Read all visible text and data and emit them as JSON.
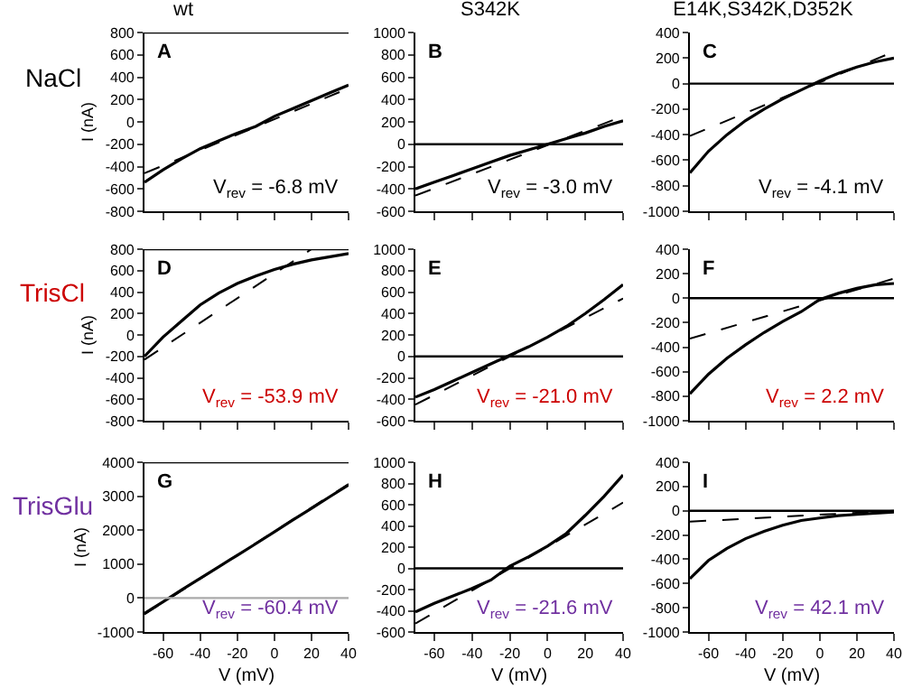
{
  "chart_data": [
    {
      "type": "line",
      "title": "wt",
      "ylabel": "I (nA)",
      "annotations": [
        "A",
        "V$_{rev}$ = -6.8 mV",
        "NaCl"
      ],
      "xlim": [
        -70,
        40
      ],
      "xticks": [
        -60,
        -40,
        -20,
        0,
        20,
        40
      ],
      "ylim": [
        -800,
        800
      ],
      "yticks": [
        -800,
        -600,
        -400,
        -200,
        0,
        200,
        400,
        600,
        800
      ],
      "tick_labels": "y",
      "ref_lines": [
        {
          "axis": "y",
          "value": 800
        }
      ],
      "series": [
        {
          "x": [
            -70,
            -60,
            -50,
            -40,
            -30,
            -20,
            -10,
            0,
            10,
            20,
            30,
            40
          ],
          "values": [
            -540,
            -430,
            -330,
            -240,
            -170,
            -100,
            -40,
            50,
            120,
            190,
            260,
            330
          ],
          "color": "#000000",
          "line_style": "solid"
        },
        {
          "x": [
            -70,
            40
          ],
          "values": [
            -460,
            300
          ],
          "color": "#000000",
          "line_style": "dashed"
        }
      ]
    },
    {
      "type": "line",
      "title": "S342K",
      "annotations": [
        "B",
        "V$_{rev}$ = -3.0 mV"
      ],
      "xlim": [
        -70,
        40
      ],
      "xticks": [
        -60,
        -40,
        -20,
        0,
        20,
        40
      ],
      "ylim": [
        -600,
        1000
      ],
      "yticks": [
        -600,
        -400,
        -200,
        0,
        200,
        400,
        600,
        800,
        1000
      ],
      "tick_labels": "y",
      "ref_lines": [
        {
          "axis": "y",
          "value": 0
        }
      ],
      "series": [
        {
          "x": [
            -70,
            -60,
            -50,
            -40,
            -30,
            -20,
            -10,
            0,
            10,
            20,
            30,
            40
          ],
          "values": [
            -400,
            -340,
            -280,
            -220,
            -160,
            -100,
            -50,
            0,
            50,
            100,
            160,
            210
          ],
          "color": "#000000",
          "line_style": "solid"
        },
        {
          "x": [
            -70,
            40
          ],
          "values": [
            -460,
            250
          ],
          "color": "#000000",
          "line_style": "dashed"
        }
      ]
    },
    {
      "type": "line",
      "title": "E14K,S342K,D352K",
      "annotations": [
        "C",
        "V$_{rev}$ = -4.1 mV"
      ],
      "xlim": [
        -70,
        40
      ],
      "xticks": [
        -60,
        -40,
        -20,
        0,
        20,
        40
      ],
      "ylim": [
        -1000,
        400
      ],
      "yticks": [
        -1000,
        -800,
        -600,
        -400,
        -200,
        0,
        200,
        400
      ],
      "tick_labels": "y",
      "ref_lines": [
        {
          "axis": "y",
          "value": 0
        }
      ],
      "series": [
        {
          "x": [
            -70,
            -60,
            -50,
            -40,
            -30,
            -20,
            -10,
            0,
            10,
            20,
            30,
            40
          ],
          "values": [
            -700,
            -530,
            -400,
            -290,
            -200,
            -120,
            -50,
            20,
            80,
            130,
            170,
            200
          ],
          "color": "#000000",
          "line_style": "solid"
        },
        {
          "x": [
            -70,
            40
          ],
          "values": [
            -410,
            250
          ],
          "color": "#000000",
          "line_style": "dashed"
        }
      ]
    },
    {
      "type": "line",
      "ylabel": "I (nA)",
      "annotations": [
        "D",
        "V$_{rev}$ = -53.9 mV",
        "TrisCl"
      ],
      "xlim": [
        -70,
        40
      ],
      "xticks": [
        -60,
        -40,
        -20,
        0,
        20,
        40
      ],
      "ylim": [
        -800,
        800
      ],
      "yticks": [
        -800,
        -600,
        -400,
        -200,
        0,
        200,
        400,
        600,
        800
      ],
      "tick_labels": "y",
      "ref_lines": [
        {
          "axis": "y",
          "value": 800
        }
      ],
      "series": [
        {
          "x": [
            -70,
            -60,
            -50,
            -40,
            -30,
            -20,
            -10,
            0,
            10,
            20,
            30,
            40
          ],
          "values": [
            -200,
            -20,
            130,
            280,
            390,
            480,
            550,
            610,
            660,
            700,
            730,
            760
          ],
          "color": "#000000",
          "line_style": "solid"
        },
        {
          "x": [
            -70,
            20
          ],
          "values": [
            -230,
            800
          ],
          "color": "#000000",
          "line_style": "dashed"
        }
      ]
    },
    {
      "type": "line",
      "annotations": [
        "E",
        "V$_{rev}$ = -21.0 mV"
      ],
      "xlim": [
        -70,
        40
      ],
      "xticks": [
        -60,
        -40,
        -20,
        0,
        20,
        40
      ],
      "ylim": [
        -600,
        1000
      ],
      "yticks": [
        -600,
        -400,
        -200,
        0,
        200,
        400,
        600,
        800,
        1000
      ],
      "tick_labels": "y",
      "ref_lines": [
        {
          "axis": "y",
          "value": 0
        }
      ],
      "series": [
        {
          "x": [
            -70,
            -60,
            -50,
            -40,
            -30,
            -20,
            -10,
            0,
            10,
            20,
            30,
            40
          ],
          "values": [
            -380,
            -310,
            -230,
            -150,
            -70,
            10,
            90,
            180,
            280,
            400,
            530,
            670
          ],
          "color": "#000000",
          "line_style": "solid"
        },
        {
          "x": [
            -70,
            40
          ],
          "values": [
            -450,
            540
          ],
          "color": "#000000",
          "line_style": "dashed"
        }
      ]
    },
    {
      "type": "line",
      "annotations": [
        "F",
        "V$_{rev}$ = 2.2 mV"
      ],
      "xlim": [
        -70,
        40
      ],
      "xticks": [
        -60,
        -40,
        -20,
        0,
        20,
        40
      ],
      "ylim": [
        -1000,
        400
      ],
      "yticks": [
        -1000,
        -800,
        -600,
        -400,
        -200,
        0,
        200,
        400
      ],
      "tick_labels": "y",
      "ref_lines": [
        {
          "axis": "y",
          "value": 0
        }
      ],
      "series": [
        {
          "x": [
            -70,
            -60,
            -50,
            -40,
            -30,
            -20,
            -10,
            0,
            10,
            20,
            30,
            40
          ],
          "values": [
            -780,
            -620,
            -490,
            -380,
            -280,
            -190,
            -110,
            -10,
            40,
            80,
            110,
            120
          ],
          "color": "#000000",
          "line_style": "solid"
        },
        {
          "x": [
            -70,
            40
          ],
          "values": [
            -330,
            160
          ],
          "color": "#000000",
          "line_style": "dashed"
        }
      ]
    },
    {
      "type": "line",
      "xlabel": "V (mV)",
      "ylabel": "I (nA)",
      "annotations": [
        "G",
        "V$_{rev}$ = -60.4 mV",
        "TrisGlu"
      ],
      "xlim": [
        -70,
        40
      ],
      "xticks": [
        -60,
        -40,
        -20,
        0,
        20,
        40
      ],
      "ylim": [
        -1000,
        4000
      ],
      "yticks": [
        -1000,
        0,
        1000,
        2000,
        3000,
        4000
      ],
      "ref_lines": [
        {
          "axis": "y",
          "value": 4000
        },
        {
          "axis": "y",
          "value": 0,
          "color": "#aaaaaa"
        }
      ],
      "series": [
        {
          "x": [
            -70,
            -60,
            -50,
            -40,
            -30,
            -20,
            -10,
            0,
            10,
            20,
            30,
            40
          ],
          "values": [
            -450,
            -110,
            240,
            580,
            920,
            1260,
            1600,
            1950,
            2300,
            2640,
            2990,
            3330
          ],
          "color": "#000000",
          "line_style": "solid"
        },
        {
          "x": [
            -70,
            40
          ],
          "values": [
            -480,
            3360
          ],
          "color": "#000000",
          "line_style": "dashed"
        }
      ]
    },
    {
      "type": "line",
      "xlabel": "V (mV)",
      "annotations": [
        "H",
        "V$_{rev}$ = -21.6 mV"
      ],
      "xlim": [
        -70,
        40
      ],
      "xticks": [
        -60,
        -40,
        -20,
        0,
        20,
        40
      ],
      "ylim": [
        -600,
        1000
      ],
      "yticks": [
        -600,
        -400,
        -200,
        0,
        200,
        400,
        600,
        800,
        1000
      ],
      "ref_lines": [
        {
          "axis": "y",
          "value": 0
        }
      ],
      "series": [
        {
          "x": [
            -70,
            -60,
            -50,
            -40,
            -30,
            -20,
            -10,
            0,
            10,
            20,
            30,
            40
          ],
          "values": [
            -410,
            -330,
            -260,
            -190,
            -110,
            20,
            110,
            210,
            330,
            500,
            680,
            880
          ],
          "color": "#000000",
          "line_style": "solid"
        },
        {
          "x": [
            -70,
            40
          ],
          "values": [
            -520,
            620
          ],
          "color": "#000000",
          "line_style": "dashed"
        }
      ]
    },
    {
      "type": "line",
      "xlabel": "V (mV)",
      "annotations": [
        "I",
        "V$_{rev}$ = 42.1 mV"
      ],
      "xlim": [
        -70,
        40
      ],
      "xticks": [
        -60,
        -40,
        -20,
        0,
        20,
        40
      ],
      "ylim": [
        -1000,
        400
      ],
      "yticks": [
        -1000,
        -800,
        -600,
        -400,
        -200,
        0,
        200,
        400
      ],
      "ref_lines": [
        {
          "axis": "y",
          "value": 0
        }
      ],
      "series": [
        {
          "x": [
            -70,
            -60,
            -50,
            -40,
            -30,
            -20,
            -10,
            0,
            10,
            20,
            30,
            40
          ],
          "values": [
            -560,
            -410,
            -310,
            -230,
            -170,
            -120,
            -80,
            -60,
            -40,
            -30,
            -20,
            -10
          ],
          "color": "#000000",
          "line_style": "solid"
        },
        {
          "x": [
            -70,
            40
          ],
          "values": [
            -90,
            0
          ],
          "color": "#000000",
          "line_style": "dashed"
        }
      ]
    }
  ]
}
